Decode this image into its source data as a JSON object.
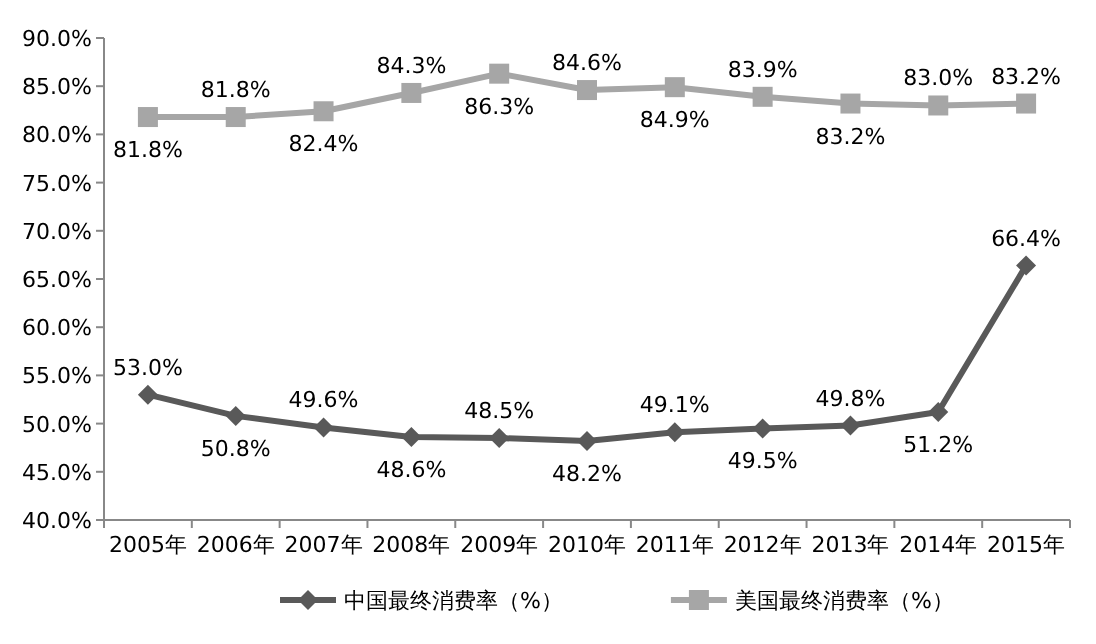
{
  "chart_data": {
    "type": "line",
    "categories": [
      "2005年",
      "2006年",
      "2007年",
      "2008年",
      "2009年",
      "2010年",
      "2011年",
      "2012年",
      "2013年",
      "2014年",
      "2015年"
    ],
    "ylim": [
      40,
      90
    ],
    "yticks": [
      {
        "value": 40,
        "label": "40.0%"
      },
      {
        "value": 45,
        "label": "45.0%"
      },
      {
        "value": 50,
        "label": "50.0%"
      },
      {
        "value": 55,
        "label": "55.0%"
      },
      {
        "value": 60,
        "label": "60.0%"
      },
      {
        "value": 65,
        "label": "65.0%"
      },
      {
        "value": 70,
        "label": "70.0%"
      },
      {
        "value": 75,
        "label": "75.0%"
      },
      {
        "value": 80,
        "label": "80.0%"
      },
      {
        "value": 85,
        "label": "85.0%"
      },
      {
        "value": 90,
        "label": "90.0%"
      }
    ],
    "grid": false,
    "legend": "bottom",
    "line_style": "solid",
    "series": [
      {
        "name": "中国最终消费率（%）",
        "color": "#595959",
        "marker": "diamond",
        "values": [
          53.0,
          50.8,
          49.6,
          48.6,
          48.5,
          48.2,
          49.1,
          49.5,
          49.8,
          51.2,
          66.4
        ],
        "value_labels": [
          "53.0%",
          "50.8%",
          "49.6%",
          "48.6%",
          "48.5%",
          "48.2%",
          "49.1%",
          "49.5%",
          "49.8%",
          "51.2%",
          "66.4%"
        ]
      },
      {
        "name": "美国最终消费率（%）",
        "color": "#a6a6a6",
        "marker": "square",
        "values": [
          81.8,
          81.8,
          82.4,
          84.3,
          86.3,
          84.6,
          84.9,
          83.9,
          83.2,
          83.0,
          83.2
        ],
        "value_labels": [
          "81.8%",
          "81.8%",
          "82.4%",
          "84.3%",
          "86.3%",
          "84.6%",
          "84.9%",
          "83.9%",
          "83.2%",
          "83.0%",
          "83.2%"
        ]
      }
    ]
  }
}
